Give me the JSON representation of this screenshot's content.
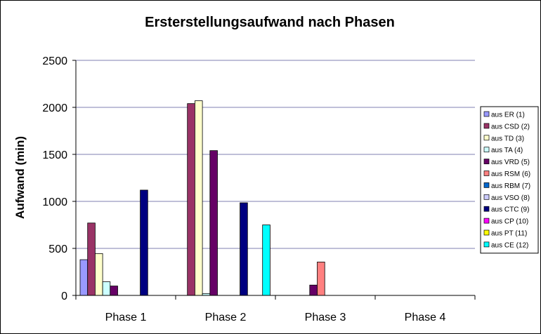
{
  "chart_data": {
    "type": "bar",
    "title": "Ersterstellungsaufwand nach Phasen",
    "xlabel": "",
    "ylabel": "Aufwand (min)",
    "ylim": [
      0,
      2500
    ],
    "yticks": [
      0,
      500,
      1000,
      1500,
      2000,
      2500
    ],
    "grid": "horizontal",
    "legend_position": "right",
    "categories": [
      "Phase 1",
      "Phase 2",
      "Phase 3",
      "Phase 4"
    ],
    "series": [
      {
        "name": "aus ER (1)",
        "color": "#9999FF",
        "values": [
          380,
          0,
          0,
          0
        ]
      },
      {
        "name": "aus CSD (2)",
        "color": "#993366",
        "values": [
          770,
          2040,
          0,
          0
        ]
      },
      {
        "name": "aus TD (3)",
        "color": "#FFFFCC",
        "values": [
          445,
          2070,
          0,
          0
        ]
      },
      {
        "name": "aus TA (4)",
        "color": "#CCFFFF",
        "values": [
          145,
          20,
          0,
          0
        ]
      },
      {
        "name": "aus VRD (5)",
        "color": "#660066",
        "values": [
          100,
          1540,
          110,
          0
        ]
      },
      {
        "name": "aus RSM (6)",
        "color": "#FF8080",
        "values": [
          0,
          0,
          355,
          0
        ]
      },
      {
        "name": "aus RBM (7)",
        "color": "#0066CC",
        "values": [
          0,
          0,
          0,
          0
        ]
      },
      {
        "name": "aus VSO (8)",
        "color": "#CCCCFF",
        "values": [
          0,
          0,
          0,
          0
        ]
      },
      {
        "name": "aus CTC (9)",
        "color": "#000080",
        "values": [
          1120,
          985,
          0,
          0
        ]
      },
      {
        "name": "aus CP (10)",
        "color": "#FF00FF",
        "values": [
          0,
          0,
          0,
          0
        ]
      },
      {
        "name": "aus PT (11)",
        "color": "#FFFF00",
        "values": [
          0,
          0,
          0,
          0
        ]
      },
      {
        "name": "aus CE (12)",
        "color": "#00FFFF",
        "values": [
          0,
          750,
          0,
          0
        ]
      }
    ]
  }
}
